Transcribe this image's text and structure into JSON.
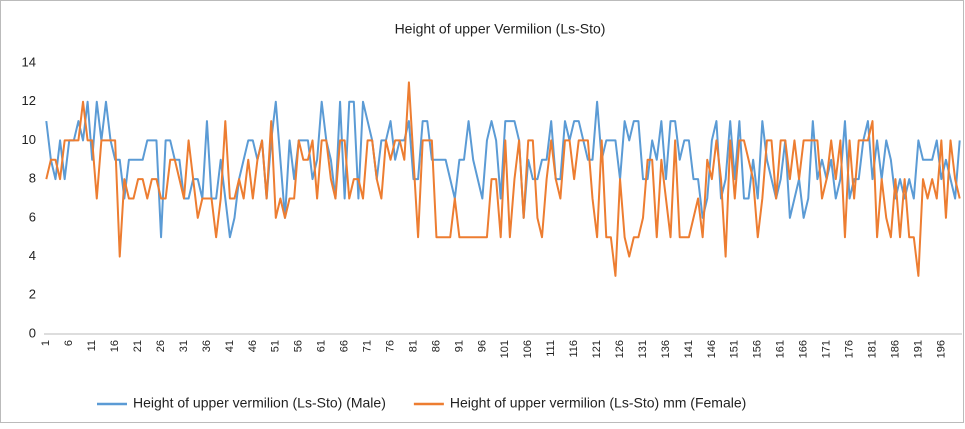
{
  "chart_data": {
    "type": "line",
    "title": "Height of upper Vermilion (Ls-Sto)",
    "categories": [
      1,
      null,
      null,
      null,
      null,
      6,
      null,
      null,
      null,
      null,
      11,
      null,
      null,
      null,
      null,
      16,
      null,
      null,
      null,
      null,
      21,
      null,
      null,
      null,
      null,
      26,
      null,
      null,
      null,
      null,
      31,
      null,
      null,
      null,
      null,
      36,
      null,
      null,
      null,
      null,
      41,
      null,
      null,
      null,
      null,
      46,
      null,
      null,
      null,
      null,
      51,
      null,
      null,
      null,
      null,
      56,
      null,
      null,
      null,
      null,
      61,
      null,
      null,
      null,
      null,
      66,
      null,
      null,
      null,
      null,
      71,
      null,
      null,
      null,
      null,
      76,
      null,
      null,
      null,
      null,
      81,
      null,
      null,
      null,
      null,
      86,
      null,
      null,
      null,
      null,
      91,
      null,
      null,
      null,
      null,
      96,
      null,
      null,
      null,
      null,
      101,
      null,
      null,
      null,
      null,
      106,
      null,
      null,
      null,
      null,
      111,
      null,
      null,
      null,
      null,
      116,
      null,
      null,
      null,
      null,
      121,
      null,
      null,
      null,
      null,
      126,
      null,
      null,
      null,
      null,
      131,
      null,
      null,
      null,
      null,
      136,
      null,
      null,
      null,
      null,
      141,
      null,
      null,
      null,
      null,
      146,
      null,
      null,
      null,
      null,
      151,
      null,
      null,
      null,
      null,
      156,
      null,
      null,
      null,
      null,
      161,
      null,
      null,
      null,
      null,
      166,
      null,
      null,
      null,
      null,
      171,
      null,
      null,
      null,
      null,
      176,
      null,
      null,
      null,
      null,
      181,
      null,
      null,
      null,
      null,
      186,
      null,
      null,
      null,
      null,
      191,
      null,
      null,
      null,
      null,
      196,
      null,
      null,
      null,
      null
    ],
    "series": [
      {
        "name": "Height of upper vermilion (Ls-Sto) (Male)",
        "color": "#5b9bd5",
        "values": [
          11,
          9,
          8,
          10,
          8,
          10,
          10,
          11,
          10,
          12,
          9,
          12,
          10,
          12,
          10,
          9,
          9,
          7,
          9,
          9,
          9,
          9,
          10,
          10,
          10,
          5,
          10,
          10,
          9,
          9,
          7,
          7,
          8,
          8,
          7,
          11,
          7,
          7,
          9,
          7,
          5,
          6,
          8,
          9,
          10,
          10,
          9,
          10,
          7,
          10,
          12,
          9,
          6,
          10,
          8,
          10,
          10,
          10,
          8,
          9,
          12,
          10,
          9,
          7,
          12,
          7,
          12,
          12,
          7,
          12,
          11,
          10,
          8,
          10,
          10,
          11,
          9,
          10,
          10,
          11,
          8,
          8,
          11,
          11,
          9,
          9,
          9,
          9,
          8,
          7,
          9,
          9,
          11,
          9,
          8,
          7,
          10,
          11,
          10,
          7,
          11,
          11,
          11,
          10,
          6,
          9,
          8,
          8,
          9,
          9,
          11,
          8,
          8,
          11,
          10,
          11,
          11,
          10,
          9,
          9,
          12,
          9,
          10,
          10,
          10,
          8,
          11,
          10,
          11,
          11,
          8,
          8,
          10,
          9,
          11,
          8,
          11,
          11,
          9,
          10,
          10,
          8,
          8,
          6,
          7,
          10,
          11,
          7,
          8,
          11,
          8,
          11,
          7,
          7,
          9,
          7,
          11,
          9,
          8,
          7,
          8,
          10,
          6,
          7,
          8,
          6,
          7,
          11,
          8,
          9,
          8,
          9,
          7,
          8,
          11,
          7,
          8,
          8,
          10,
          11,
          8,
          10,
          8,
          10,
          9,
          7,
          8,
          7,
          8,
          7,
          10,
          9,
          9,
          9,
          10,
          8,
          9,
          8,
          7,
          10
        ]
      },
      {
        "name": "Height of upper vermilion (Ls-Sto) mm (Female)",
        "color": "#ed7d31",
        "values": [
          8,
          9,
          9,
          8,
          10,
          10,
          10,
          10,
          12,
          10,
          10,
          7,
          10,
          10,
          10,
          10,
          4,
          8,
          7,
          7,
          8,
          8,
          7,
          8,
          8,
          7,
          7,
          9,
          9,
          8,
          7,
          10,
          8,
          6,
          7,
          7,
          7,
          5,
          7,
          11,
          7,
          7,
          8,
          7,
          9,
          7,
          9,
          10,
          7,
          11,
          6,
          7,
          6,
          7,
          7,
          10,
          9,
          9,
          10,
          7,
          10,
          10,
          8,
          7,
          10,
          10,
          7,
          8,
          8,
          7,
          10,
          10,
          8,
          7,
          10,
          9,
          10,
          10,
          9,
          13,
          9,
          5,
          10,
          10,
          10,
          5,
          5,
          5,
          5,
          7,
          5,
          5,
          5,
          5,
          5,
          5,
          5,
          8,
          8,
          5,
          10,
          5,
          8,
          10,
          6,
          10,
          10,
          6,
          5,
          8,
          10,
          8,
          7,
          10,
          10,
          8,
          10,
          10,
          10,
          7,
          5,
          10,
          5,
          5,
          3,
          8,
          5,
          4,
          5,
          5,
          6,
          9,
          9,
          5,
          9,
          7,
          5,
          10,
          5,
          5,
          5,
          6,
          7,
          5,
          9,
          8,
          10,
          8,
          4,
          10,
          7,
          10,
          10,
          9,
          8,
          5,
          7,
          10,
          10,
          7,
          10,
          10,
          8,
          10,
          8,
          10,
          10,
          10,
          10,
          7,
          8,
          10,
          8,
          10,
          5,
          10,
          7,
          10,
          10,
          10,
          11,
          5,
          8,
          6,
          5,
          8,
          5,
          8,
          5,
          5,
          3,
          8,
          7,
          8,
          7,
          10,
          6,
          10,
          8,
          7
        ]
      }
    ],
    "ylim": [
      0,
      14
    ],
    "yticks": [
      0,
      2,
      4,
      6,
      8,
      10,
      12,
      14
    ],
    "grid": false
  }
}
